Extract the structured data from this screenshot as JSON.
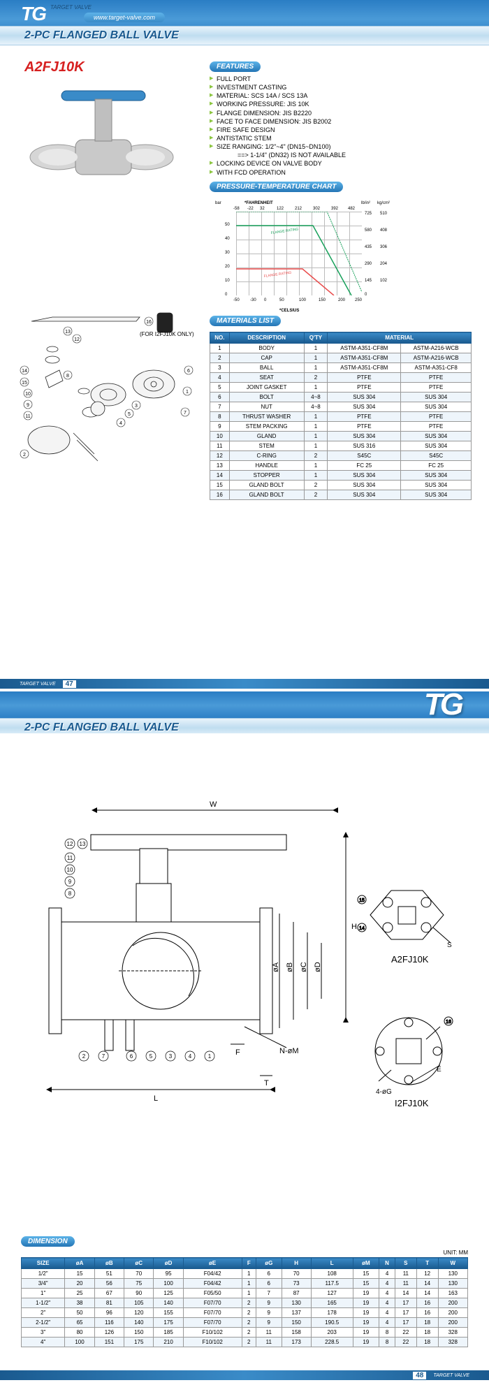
{
  "header": {
    "logo": "TG",
    "tagline": "TARGET VALVE",
    "website": "www.target-valve.com",
    "title": "2-PC FLANGED BALL VALVE"
  },
  "model": "A2FJ10K",
  "features": {
    "heading": "FEATURES",
    "items": [
      "FULL PORT",
      "INVESTMENT CASTING",
      "MATERIAL: SCS 14A / SCS 13A",
      "WORKING PRESSURE: JIS 10K",
      "FLANGE DIMENSION: JIS B2220",
      "FACE TO FACE DIMENSION: JIS B2002",
      "FIRE SAFE DESIGN",
      "ANTISTATIC STEM",
      "SIZE RANGING: 1/2\"~4\" (DN15~DN100)"
    ],
    "indent_item": "==> 1-1/4\" (DN32) IS NOT AVAILABLE",
    "items2": [
      "LOCKING DEVICE ON VALVE BODY",
      "WITH FCD OPERATION"
    ]
  },
  "pchart": {
    "heading": "PRESSURE-TEMPERATURE CHART",
    "x_label_top": "*FAHRENHEIT",
    "x_label_bottom": "*CELSIUS",
    "y_label_left": "bar",
    "y_label_right_units": [
      "lb/in²",
      "kg/cm²"
    ],
    "fahrenheit_ticks": [
      "-58",
      "-22",
      "32",
      "122",
      "212",
      "302",
      "392",
      "482"
    ],
    "celsius_ticks": [
      "-50",
      "-30",
      "0",
      "50",
      "100",
      "150",
      "200",
      "250"
    ],
    "bar_ticks": [
      "0",
      "10",
      "20",
      "30",
      "40",
      "50"
    ],
    "psi_ticks": [
      "0",
      "145",
      "290",
      "435",
      "580",
      "725"
    ],
    "kgcm2_ticks": [
      "0",
      "102",
      "204",
      "306",
      "408",
      "510"
    ],
    "lines": [
      {
        "label": "FLANGE RATING 20K",
        "color": "#17a05a"
      },
      {
        "label": "FLANGE RATING 10K",
        "color": "#e94c4c"
      },
      {
        "label": "SEAT",
        "color": "#17a05a"
      }
    ]
  },
  "exploded_note": "(FOR I2FJ10K ONLY)",
  "materials": {
    "heading": "MATERIALS LIST",
    "columns": [
      "NO.",
      "DESCRIPTION",
      "Q'TY",
      "MATERIAL"
    ],
    "rows": [
      [
        "1",
        "BODY",
        "1",
        "ASTM-A351-CF8M",
        "ASTM-A216-WCB"
      ],
      [
        "2",
        "CAP",
        "1",
        "ASTM-A351-CF8M",
        "ASTM-A216-WCB"
      ],
      [
        "3",
        "BALL",
        "1",
        "ASTM-A351-CF8M",
        "ASTM-A351-CF8"
      ],
      [
        "4",
        "SEAT",
        "2",
        "PTFE",
        "PTFE"
      ],
      [
        "5",
        "JOINT GASKET",
        "1",
        "PTFE",
        "PTFE"
      ],
      [
        "6",
        "BOLT",
        "4~8",
        "SUS 304",
        "SUS 304"
      ],
      [
        "7",
        "NUT",
        "4~8",
        "SUS 304",
        "SUS 304"
      ],
      [
        "8",
        "THRUST WASHER",
        "1",
        "PTFE",
        "PTFE"
      ],
      [
        "9",
        "STEM PACKING",
        "1",
        "PTFE",
        "PTFE"
      ],
      [
        "10",
        "GLAND",
        "1",
        "SUS 304",
        "SUS 304"
      ],
      [
        "11",
        "STEM",
        "1",
        "SUS 316",
        "SUS 304"
      ],
      [
        "12",
        "C-RING",
        "2",
        "S45C",
        "S45C"
      ],
      [
        "13",
        "HANDLE",
        "1",
        "FC 25",
        "FC 25"
      ],
      [
        "14",
        "STOPPER",
        "1",
        "SUS 304",
        "SUS 304"
      ],
      [
        "15",
        "GLAND BOLT",
        "2",
        "SUS 304",
        "SUS 304"
      ],
      [
        "16",
        "GLAND BOLT",
        "2",
        "SUS 304",
        "SUS 304"
      ]
    ]
  },
  "page1_footer": {
    "brand": "TARGET VALVE",
    "page": "47"
  },
  "page2": {
    "title": "2-PC FLANGED BALL VALVE",
    "drawing_labels": {
      "model1": "A2FJ10K",
      "model2": "I2FJ10K",
      "W": "W",
      "H": "H",
      "L": "L",
      "T": "T",
      "F": "F",
      "phi_A": "øA",
      "phi_B": "øB",
      "phi_C": "øC",
      "phi_D": "øD",
      "holes": "N-øM",
      "iso_holes": "4-øG",
      "E": "E",
      "S": "S"
    },
    "callouts": [
      "1",
      "2",
      "3",
      "4",
      "5",
      "6",
      "7",
      "8",
      "9",
      "10",
      "11",
      "12",
      "13",
      "14",
      "15",
      "16"
    ]
  },
  "dimension": {
    "heading": "DIMENSION",
    "unit": "UNIT: MM",
    "columns": [
      "SIZE",
      "øA",
      "øB",
      "øC",
      "øD",
      "øE",
      "F",
      "øG",
      "H",
      "L",
      "øM",
      "N",
      "S",
      "T",
      "W"
    ],
    "rows": [
      [
        "1/2\"",
        "15",
        "51",
        "70",
        "95",
        "F04/42",
        "1",
        "6",
        "70",
        "108",
        "15",
        "4",
        "11",
        "12",
        "130"
      ],
      [
        "3/4\"",
        "20",
        "56",
        "75",
        "100",
        "F04/42",
        "1",
        "6",
        "73",
        "117.5",
        "15",
        "4",
        "11",
        "14",
        "130"
      ],
      [
        "1\"",
        "25",
        "67",
        "90",
        "125",
        "F05/50",
        "1",
        "7",
        "87",
        "127",
        "19",
        "4",
        "14",
        "14",
        "163"
      ],
      [
        "1-1/2\"",
        "38",
        "81",
        "105",
        "140",
        "F07/70",
        "2",
        "9",
        "130",
        "165",
        "19",
        "4",
        "17",
        "16",
        "200"
      ],
      [
        "2\"",
        "50",
        "96",
        "120",
        "155",
        "F07/70",
        "2",
        "9",
        "137",
        "178",
        "19",
        "4",
        "17",
        "16",
        "200"
      ],
      [
        "2-1/2\"",
        "65",
        "116",
        "140",
        "175",
        "F07/70",
        "2",
        "9",
        "150",
        "190.5",
        "19",
        "4",
        "17",
        "18",
        "200"
      ],
      [
        "3\"",
        "80",
        "126",
        "150",
        "185",
        "F10/102",
        "2",
        "11",
        "158",
        "203",
        "19",
        "8",
        "22",
        "18",
        "328"
      ],
      [
        "4\"",
        "100",
        "151",
        "175",
        "210",
        "F10/102",
        "2",
        "11",
        "173",
        "228.5",
        "19",
        "8",
        "22",
        "18",
        "328"
      ]
    ]
  },
  "page2_footer": {
    "brand": "TARGET VALVE",
    "page": "48"
  }
}
